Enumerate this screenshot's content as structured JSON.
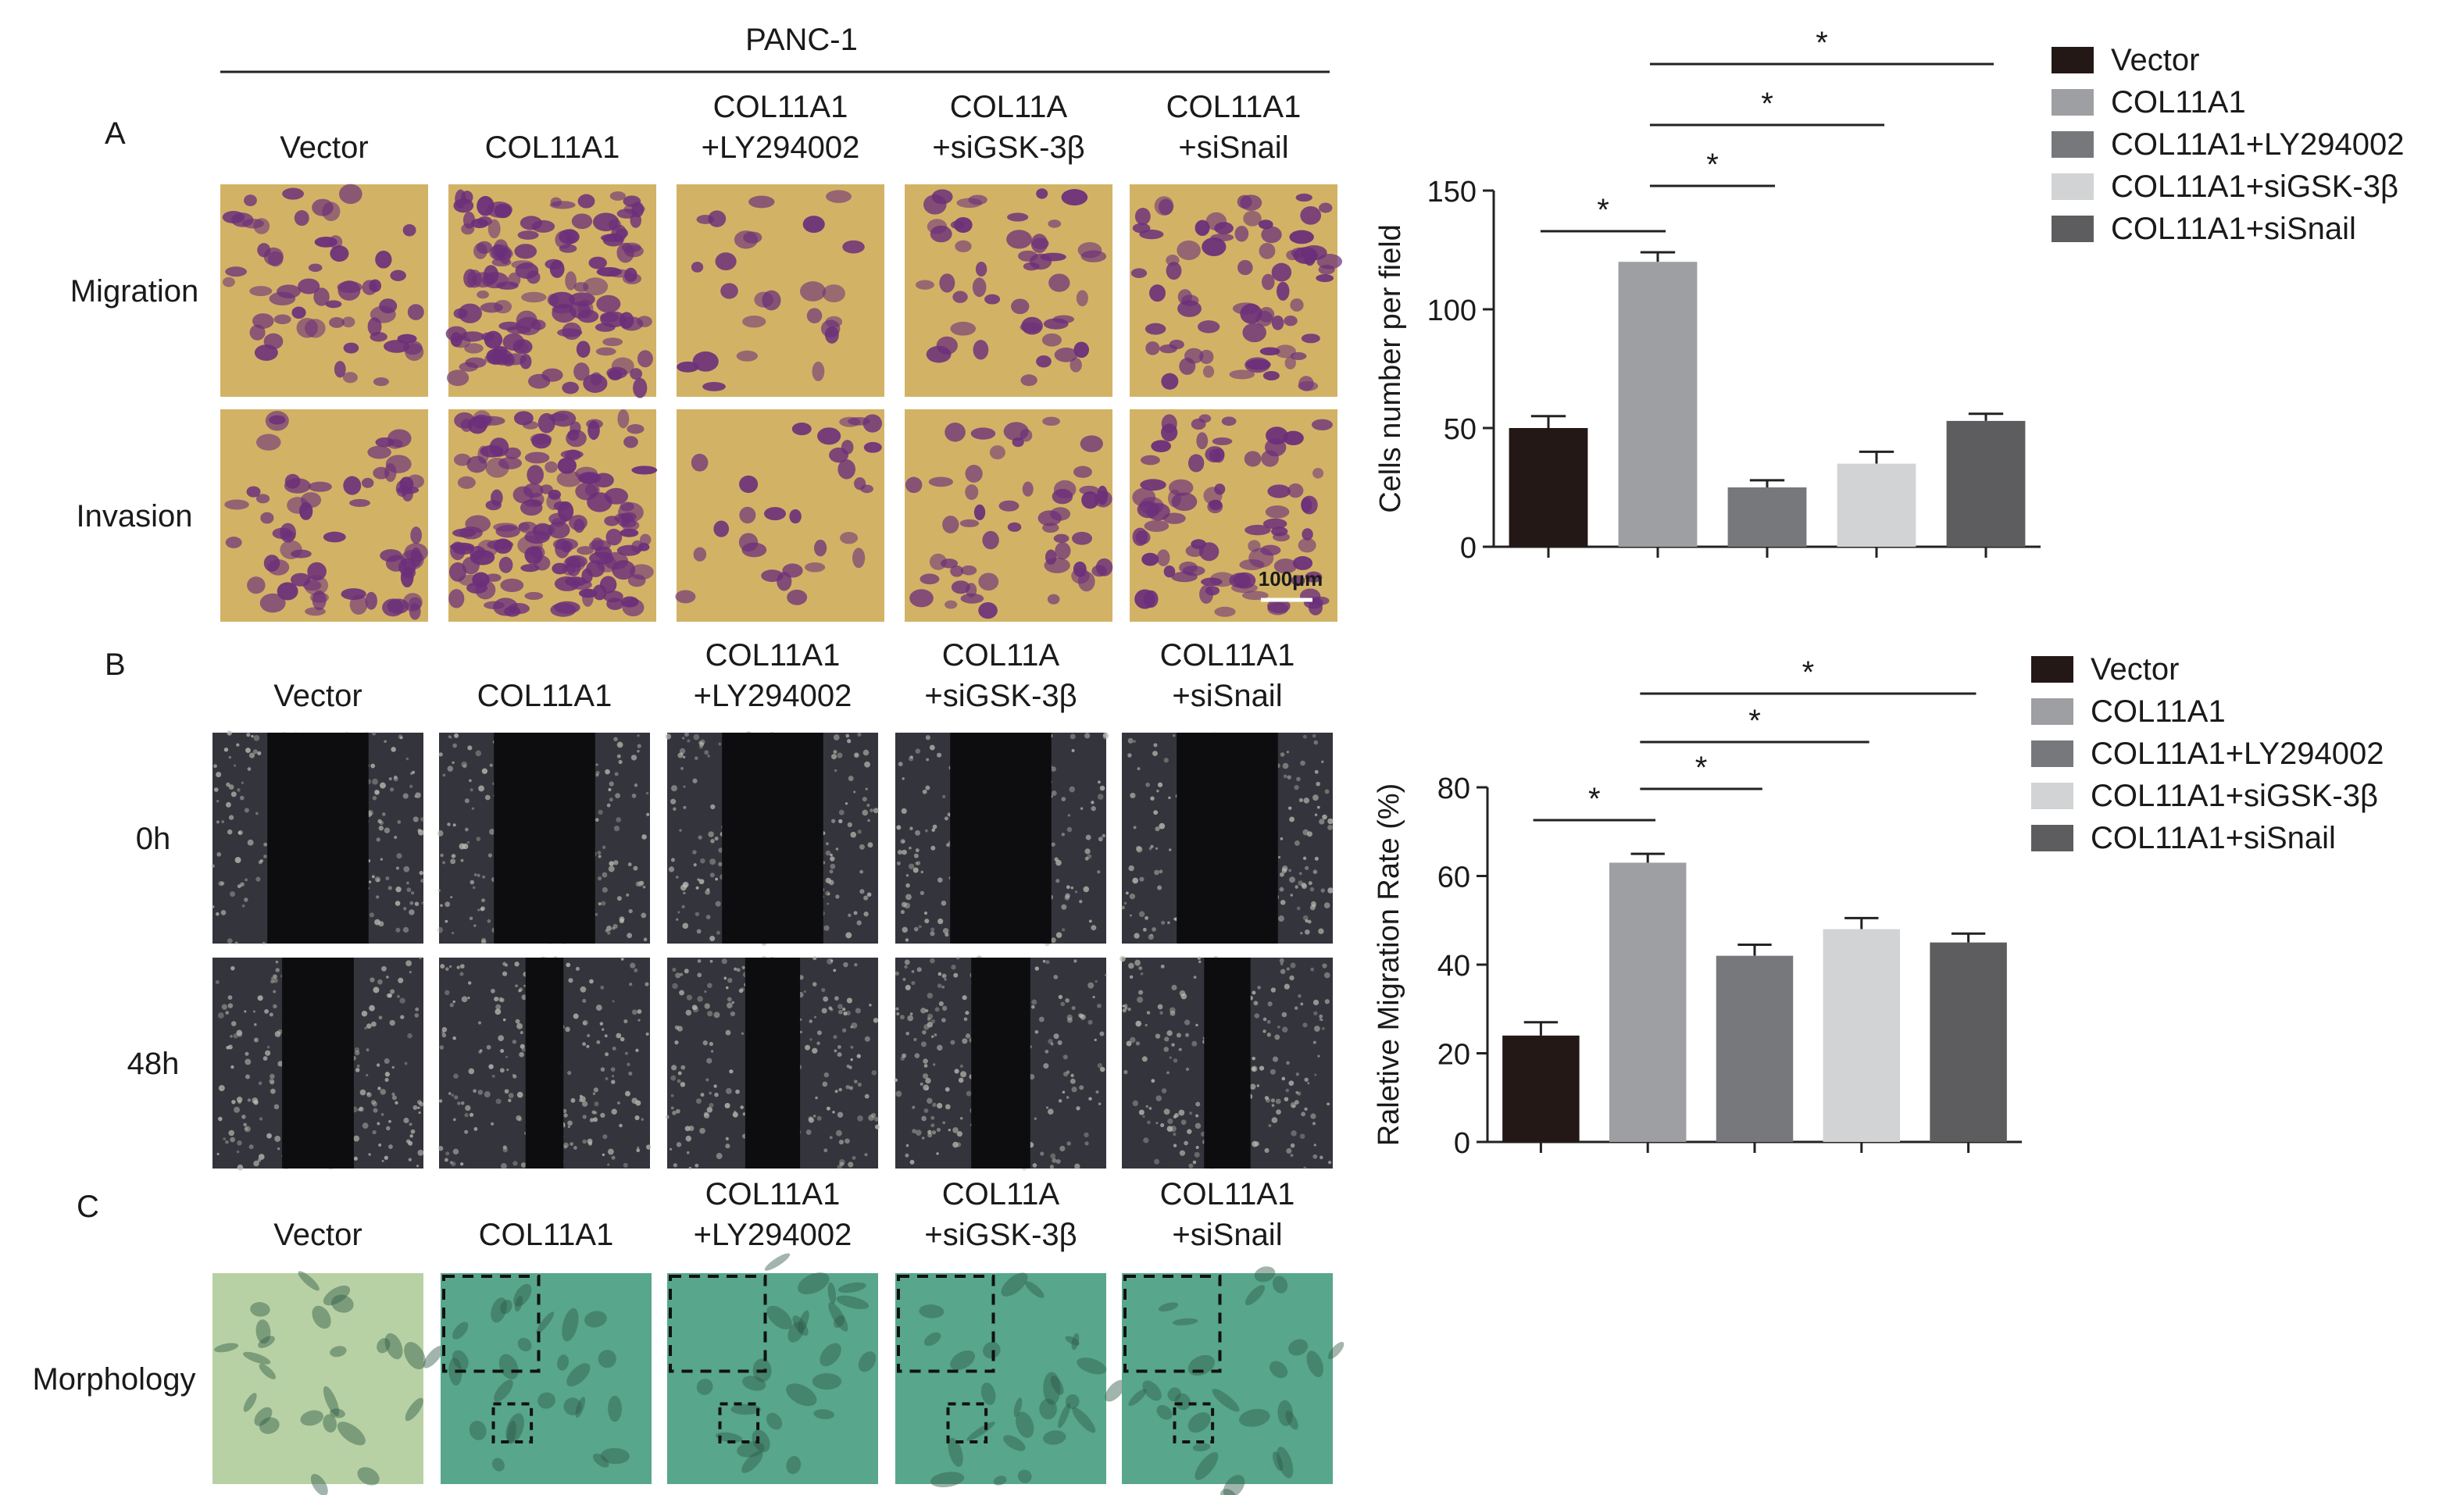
{
  "header": {
    "cell_line": "PANC-1"
  },
  "panel_letters": {
    "a": "A",
    "b": "B",
    "c": "C"
  },
  "panel_a": {
    "columns": [
      "Vector",
      "COL11A1",
      "COL11A1\n+LY294002",
      "COL11A\n+siGSK-3β",
      "COL11A1\n+siSnail"
    ],
    "rows": [
      "Migration",
      "Invasion"
    ],
    "scale_bar": "100μm"
  },
  "panel_b": {
    "columns": [
      "Vector",
      "COL11A1",
      "COL11A1\n+LY294002",
      "COL11A\n+siGSK-3β",
      "COL11A1\n+siSnail"
    ],
    "rows": [
      "0h",
      "48h"
    ]
  },
  "panel_c": {
    "columns": [
      "Vector",
      "COL11A1",
      "COL11A1\n+LY294002",
      "COL11A\n+siGSK-3β",
      "COL11A1\n+siSnail"
    ],
    "rows": [
      "Morphology"
    ]
  },
  "micrograph_colors": {
    "transwell_bg": "#d2b366",
    "transwell_cell": "#6b2f7a",
    "scratch_bg": "#34343c",
    "scratch_gap": "#0d0d0f",
    "morph_bg_light": "#b8d1a4",
    "morph_bg_teal": "#58a68c",
    "morph_cell": "#2f5b48"
  },
  "chart_data": [
    {
      "type": "bar",
      "categories": [
        "Vector",
        "COL11A1",
        "COL11A1+LY294002",
        "COL11A1+siGSK-3β",
        "COL11A1+siSnail"
      ],
      "values": [
        50,
        120,
        25,
        35,
        53
      ],
      "errors": [
        5,
        4,
        3,
        5,
        3
      ],
      "colors": [
        "#231816",
        "#9d9fa2",
        "#77787b",
        "#d1d3d4",
        "#5d5d5f"
      ],
      "title": "",
      "xlabel": "",
      "ylabel": "Cells number per field",
      "ylim": [
        0,
        150
      ],
      "yticks": [
        0,
        50,
        100,
        150
      ],
      "legend": [
        "Vector",
        "COL11A1",
        "COL11A1+LY294002",
        "COL11A1+siGSK-3β",
        "COL11A1+siSnail"
      ],
      "legend_position": "top-right",
      "grid": false,
      "significance": [
        {
          "from": 0,
          "to": 1,
          "label": "*"
        },
        {
          "from": 1,
          "to": 2,
          "label": "*"
        },
        {
          "from": 1,
          "to": 3,
          "label": "*"
        },
        {
          "from": 1,
          "to": 4,
          "label": "*"
        }
      ]
    },
    {
      "type": "bar",
      "categories": [
        "Vector",
        "COL11A1",
        "COL11A1+LY294002",
        "COL11A1+siGSK-3β",
        "COL11A1+siSnail"
      ],
      "values": [
        24,
        63,
        42,
        48,
        45
      ],
      "errors": [
        3,
        2,
        2.5,
        2.5,
        2
      ],
      "colors": [
        "#231816",
        "#9d9fa2",
        "#77787b",
        "#d1d3d4",
        "#5d5d5f"
      ],
      "title": "",
      "xlabel": "",
      "ylabel": "Raletive Migration Rate (%)",
      "ylim": [
        0,
        80
      ],
      "yticks": [
        0,
        20,
        40,
        60,
        80
      ],
      "legend": [
        "Vector",
        "COL11A1",
        "COL11A1+LY294002",
        "COL11A1+siGSK-3β",
        "COL11A1+siSnail"
      ],
      "legend_position": "top-right",
      "grid": false,
      "significance": [
        {
          "from": 0,
          "to": 1,
          "label": "*"
        },
        {
          "from": 1,
          "to": 2,
          "label": "*"
        },
        {
          "from": 1,
          "to": 3,
          "label": "*"
        },
        {
          "from": 1,
          "to": 4,
          "label": "*"
        }
      ]
    }
  ]
}
